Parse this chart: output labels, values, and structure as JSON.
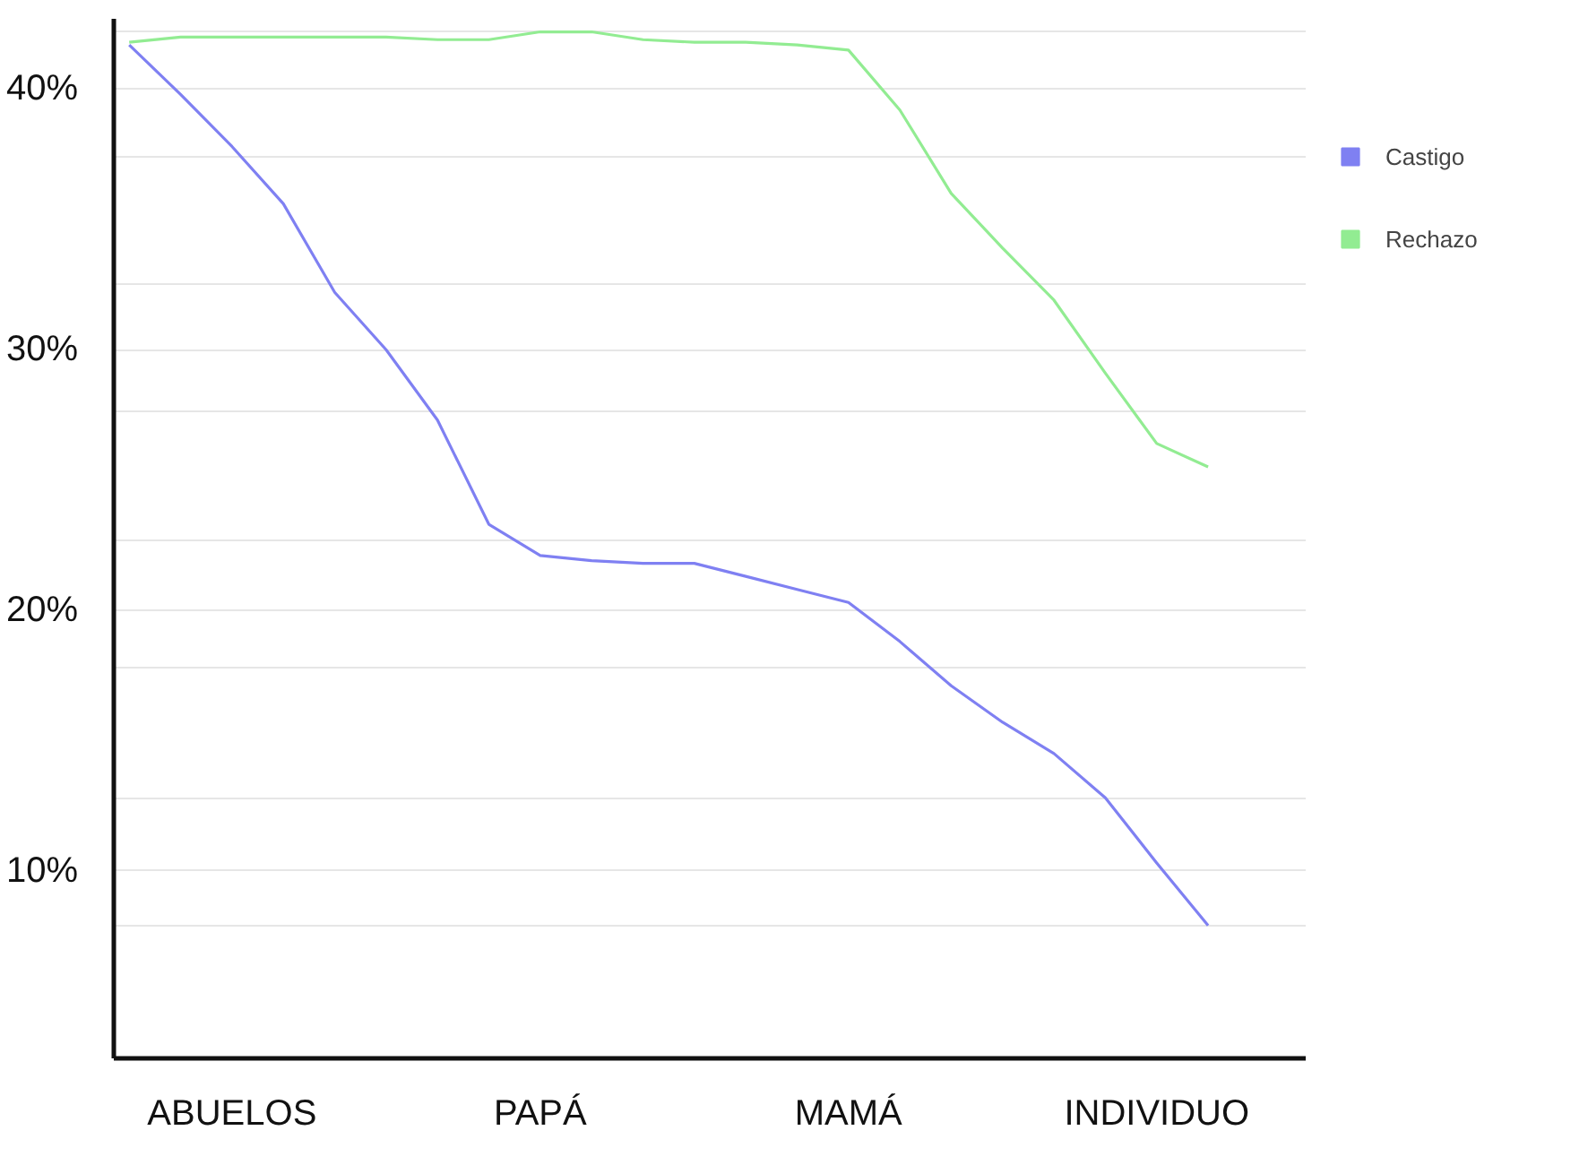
{
  "chart_data": {
    "type": "line",
    "categories": [
      null,
      null,
      "ABUELOS",
      null,
      null,
      null,
      null,
      null,
      "PAPÁ",
      null,
      null,
      null,
      null,
      null,
      "MAMÁ",
      null,
      null,
      null,
      null,
      null,
      "INDIVIDUO",
      null,
      null
    ],
    "ylim": [
      2.8,
      42.7
    ],
    "yticks": [
      {
        "value": 10,
        "label": "10%"
      },
      {
        "value": 20,
        "label": "20%"
      },
      {
        "value": 30,
        "label": "30%"
      },
      {
        "value": 40,
        "label": "40%"
      },
      {
        "value": 7.9,
        "label": null
      },
      {
        "value": 12.8,
        "label": null
      },
      {
        "value": 17.8,
        "label": null
      },
      {
        "value": 22.7,
        "label": null
      },
      {
        "value": 27.6,
        "label": null
      },
      {
        "value": 32.5,
        "label": null
      },
      {
        "value": 37.4,
        "label": null
      },
      {
        "value": 42.2,
        "label": null
      }
    ],
    "grid": "y",
    "legend": "right",
    "marker": "none",
    "line_style": "solid",
    "series": [
      {
        "name": "Castigo",
        "color": "#7f80f2",
        "values": [
          41.7,
          39.8,
          37.8,
          35.6,
          32.2,
          30.0,
          27.3,
          23.3,
          22.1,
          21.9,
          21.8,
          21.8,
          21.3,
          20.8,
          20.3,
          18.8,
          17.1,
          15.7,
          14.5,
          12.8,
          10.3,
          7.9,
          null
        ]
      },
      {
        "name": "Rechazo",
        "color": "#92ec92",
        "values": [
          41.8,
          42.0,
          42.0,
          42.0,
          42.0,
          42.0,
          41.9,
          41.9,
          42.2,
          42.2,
          41.9,
          41.8,
          41.8,
          41.7,
          41.5,
          39.2,
          36.0,
          33.9,
          31.9,
          29.1,
          26.4,
          25.5,
          null
        ]
      }
    ]
  }
}
